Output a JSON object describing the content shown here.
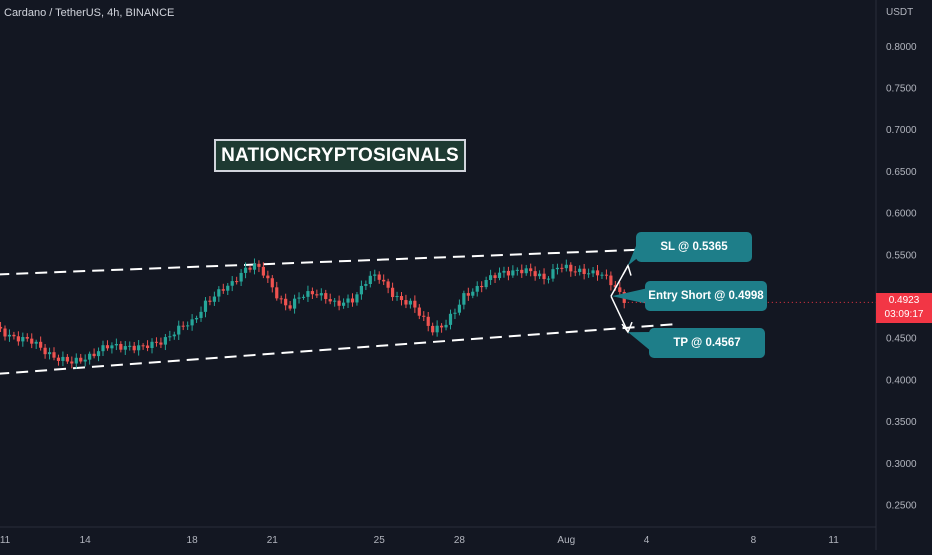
{
  "header": {
    "symbol_line": "Cardano / TetherUS, 4h, BINANCE"
  },
  "axis": {
    "currency": "USDT"
  },
  "watermark": {
    "text": "NATIONCRYPTOSIGNALS"
  },
  "last_price": {
    "value": "0.4923",
    "countdown": "03:09:17"
  },
  "callouts": {
    "sl": "SL @ 0.5365",
    "entry": "Entry Short @ 0.4998",
    "tp": "TP @ 0.4567"
  },
  "colors": {
    "background": "#131722",
    "up_candle": "#26a69a",
    "down_candle": "#ef5350",
    "callout": "#1e7e89",
    "price_tag": "#f23645",
    "channel": "#ffffff"
  },
  "chart_data": {
    "type": "candlestick",
    "title": "Cardano / TetherUS, 4h, BINANCE",
    "ylabel": "USDT",
    "ylim": [
      0.22,
      0.84
    ],
    "y_ticks": [
      0.8,
      0.75,
      0.7,
      0.65,
      0.6,
      0.55,
      0.5,
      0.45,
      0.4,
      0.35,
      0.3,
      0.25
    ],
    "y_tick_labels": [
      "0.8000",
      "0.7500",
      "0.7000",
      "0.6500",
      "0.6000",
      "0.5500",
      "0.5000",
      "0.4500",
      "0.4000",
      "0.3500",
      "0.3000",
      "0.2500"
    ],
    "x_ticks": [
      {
        "label": "11",
        "day": 11
      },
      {
        "label": "14",
        "day": 14
      },
      {
        "label": "18",
        "day": 18
      },
      {
        "label": "21",
        "day": 21
      },
      {
        "label": "25",
        "day": 25
      },
      {
        "label": "28",
        "day": 28
      },
      {
        "label": "Aug",
        "day": 32
      },
      {
        "label": "4",
        "day": 35
      },
      {
        "label": "8",
        "day": 39
      },
      {
        "label": "11",
        "day": 42
      }
    ],
    "close_path": [
      [
        10.0,
        0.469
      ],
      [
        11.0,
        0.456
      ],
      [
        12.0,
        0.444
      ],
      [
        12.6,
        0.433
      ],
      [
        13.1,
        0.423
      ],
      [
        13.5,
        0.419
      ],
      [
        14.2,
        0.43
      ],
      [
        14.8,
        0.438
      ],
      [
        15.5,
        0.441
      ],
      [
        16.2,
        0.437
      ],
      [
        16.8,
        0.446
      ],
      [
        17.4,
        0.458
      ],
      [
        18.0,
        0.468
      ],
      [
        18.5,
        0.493
      ],
      [
        19.0,
        0.503
      ],
      [
        19.5,
        0.515
      ],
      [
        19.9,
        0.532
      ],
      [
        20.3,
        0.537
      ],
      [
        20.7,
        0.525
      ],
      [
        21.1,
        0.505
      ],
      [
        21.6,
        0.486
      ],
      [
        22.1,
        0.499
      ],
      [
        22.6,
        0.506
      ],
      [
        23.0,
        0.499
      ],
      [
        23.4,
        0.487
      ],
      [
        24.0,
        0.497
      ],
      [
        24.6,
        0.522
      ],
      [
        25.0,
        0.521
      ],
      [
        25.4,
        0.507
      ],
      [
        25.8,
        0.496
      ],
      [
        26.2,
        0.489
      ],
      [
        26.6,
        0.474
      ],
      [
        27.0,
        0.461
      ],
      [
        27.5,
        0.466
      ],
      [
        27.9,
        0.483
      ],
      [
        28.2,
        0.503
      ],
      [
        28.6,
        0.509
      ],
      [
        29.1,
        0.519
      ],
      [
        29.7,
        0.53
      ],
      [
        30.2,
        0.531
      ],
      [
        30.7,
        0.527
      ],
      [
        31.2,
        0.522
      ],
      [
        31.7,
        0.536
      ],
      [
        32.2,
        0.529
      ],
      [
        32.7,
        0.531
      ],
      [
        33.2,
        0.527
      ],
      [
        33.6,
        0.517
      ],
      [
        34.0,
        0.504
      ],
      [
        34.3,
        0.492
      ]
    ],
    "channel": {
      "upper": [
        [
          10.0,
          0.525
        ],
        [
          36.0,
          0.557
        ]
      ],
      "lower": [
        [
          10.0,
          0.405
        ],
        [
          36.0,
          0.466
        ]
      ]
    },
    "trade": {
      "stop_loss": 0.5365,
      "entry_short": 0.4998,
      "take_profit": 0.4567
    },
    "last_price": 0.4923
  }
}
